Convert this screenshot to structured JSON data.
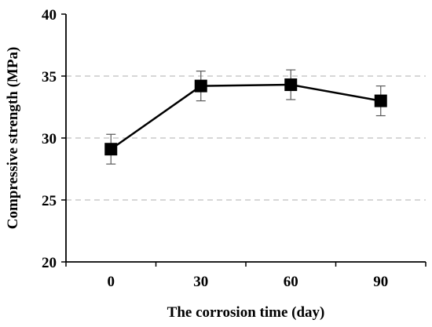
{
  "chart_data": {
    "type": "line",
    "xlabel": "The corrosion time (day)",
    "ylabel": "Compressive strength (MPa)",
    "categories": [
      "0",
      "30",
      "60",
      "90"
    ],
    "ylim": [
      20,
      40
    ],
    "yticks": [
      "20",
      "25",
      "30",
      "35",
      "40"
    ],
    "grid": "horizontal dashed",
    "series": [
      {
        "values": [
          29.1,
          34.2,
          34.3,
          33.0
        ],
        "error": [
          1.2,
          1.2,
          1.2,
          1.2
        ]
      }
    ],
    "colors": {
      "line": "#000000",
      "marker": "#000000",
      "grid": "#bfbfbf",
      "error": "#595959"
    }
  }
}
